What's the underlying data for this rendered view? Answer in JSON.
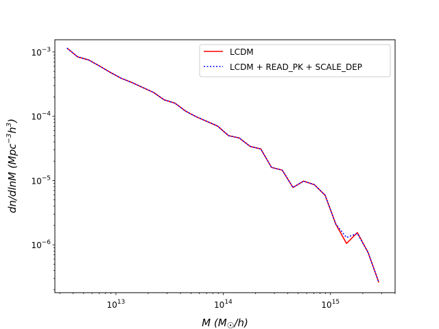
{
  "chart_data": {
    "type": "line",
    "title": "",
    "xlabel": "M (M☉/h)",
    "ylabel": "dn/dlnM (Mpc⁻³h³)",
    "x_scale": "log",
    "y_scale": "log",
    "xlim": [
      2700000000000.0,
      4000000000000000.0
    ],
    "ylim": [
      1.8e-07,
      0.00155
    ],
    "grid": false,
    "legend_position": "top-right",
    "x_tick_labels": [
      "10^13",
      "10^14",
      "10^15"
    ],
    "y_tick_labels": [
      "10^-3",
      "10^-4",
      "10^-5",
      "10^-6"
    ],
    "series": [
      {
        "name": "LCDM",
        "color": "#ff0000",
        "style": "solid",
        "x": [
          3500000000000.0,
          4400000000000.0,
          5600000000000.0,
          7100000000000.0,
          8900000000000.0,
          11200000000000.0,
          14100000000000.0,
          17800000000000.0,
          22400000000000.0,
          28200000000000.0,
          35500000000000.0,
          44700000000000.0,
          56200000000000.0,
          70800000000000.0,
          89100000000000.0,
          112000000000000.0,
          141000000000000.0,
          178000000000000.0,
          224000000000000.0,
          282000000000000.0,
          355000000000000.0,
          447000000000000.0,
          562000000000000.0,
          708000000000000.0,
          891000000000000.0,
          1120000000000000.0,
          1410000000000000.0,
          1780000000000000.0,
          2240000000000000.0,
          2820000000000000.0
        ],
        "y": [
          0.00115,
          0.00084,
          0.00075,
          0.0006,
          0.00048,
          0.00039,
          0.000335,
          0.00028,
          0.000235,
          0.00018,
          0.00016,
          0.00012,
          9.8e-05,
          8.3e-05,
          7e-05,
          5e-05,
          4.6e-05,
          3.4e-05,
          3.1e-05,
          1.6e-05,
          1.45e-05,
          7.8e-06,
          9.8e-06,
          8.6e-06,
          5.9e-06,
          2.1e-06,
          1.05e-06,
          1.55e-06,
          7.6e-07,
          2.6e-07
        ]
      },
      {
        "name": "LCDM + READ_PK + SCALE_DEP",
        "color": "#0000ff",
        "style": "dotted",
        "x": [
          3500000000000.0,
          4400000000000.0,
          5600000000000.0,
          7100000000000.0,
          8900000000000.0,
          11200000000000.0,
          14100000000000.0,
          17800000000000.0,
          22400000000000.0,
          28200000000000.0,
          35500000000000.0,
          44700000000000.0,
          56200000000000.0,
          70800000000000.0,
          89100000000000.0,
          112000000000000.0,
          141000000000000.0,
          178000000000000.0,
          224000000000000.0,
          282000000000000.0,
          355000000000000.0,
          447000000000000.0,
          562000000000000.0,
          708000000000000.0,
          891000000000000.0,
          1120000000000000.0,
          1410000000000000.0,
          1780000000000000.0,
          2240000000000000.0,
          2820000000000000.0
        ],
        "y": [
          0.00115,
          0.00084,
          0.00075,
          0.0006,
          0.00048,
          0.00039,
          0.000335,
          0.00028,
          0.000235,
          0.00018,
          0.00016,
          0.00012,
          9.8e-05,
          8.3e-05,
          7e-05,
          5e-05,
          4.6e-05,
          3.4e-05,
          3.1e-05,
          1.6e-05,
          1.45e-05,
          7.8e-06,
          9.8e-06,
          8.6e-06,
          5.9e-06,
          2.1e-06,
          1.3e-06,
          1.5e-06,
          7.6e-07,
          2.6e-07
        ]
      }
    ]
  }
}
